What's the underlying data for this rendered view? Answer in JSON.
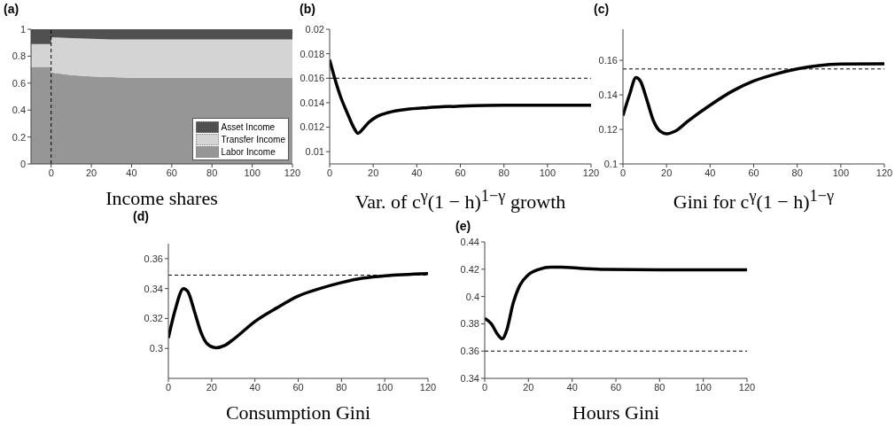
{
  "chart_data": [
    {
      "type": "area",
      "stacked": true,
      "title": "(a)",
      "xlabel": "Income shares",
      "x": [
        -10,
        0,
        0,
        10,
        20,
        30,
        40,
        60,
        80,
        100,
        120
      ],
      "xlim": [
        -10,
        120
      ],
      "xticks": [
        0,
        20,
        40,
        60,
        80,
        100,
        120
      ],
      "ylim": [
        0,
        1
      ],
      "yticks": [
        0,
        0.2,
        0.4,
        0.6,
        0.8,
        1
      ],
      "legend": "bottom right",
      "grid": false,
      "series": [
        {
          "name": "Labor Income",
          "color": "#969696",
          "values": [
            0.72,
            0.72,
            0.68,
            0.66,
            0.65,
            0.645,
            0.64,
            0.64,
            0.64,
            0.64,
            0.64
          ]
        },
        {
          "name": "Transfer Income",
          "color": "#d4d4d4",
          "values": [
            0.17,
            0.17,
            0.26,
            0.275,
            0.28,
            0.28,
            0.285,
            0.285,
            0.285,
            0.285,
            0.285
          ]
        },
        {
          "name": "Asset Income",
          "color": "#505050",
          "values": [
            0.11,
            0.11,
            0.06,
            0.065,
            0.07,
            0.075,
            0.075,
            0.075,
            0.075,
            0.075,
            0.075
          ]
        }
      ],
      "ref_lines": [
        {
          "axis": "x",
          "value": 0,
          "line_style": "dashed",
          "color": "#000000"
        }
      ]
    },
    {
      "type": "line",
      "title": "(b)",
      "xlabel": "Var. of c$^{γ}$(1 − h)$^{1−γ}$ growth",
      "x": [
        0,
        2,
        5,
        8,
        11,
        13,
        15,
        18,
        22,
        27,
        35,
        45,
        60,
        80,
        100,
        120
      ],
      "xlim": [
        0,
        120
      ],
      "xticks": [
        0,
        20,
        40,
        60,
        80,
        100,
        120
      ],
      "ylim": [
        0.009,
        0.02
      ],
      "yticks": [
        0.01,
        0.012,
        0.014,
        0.016,
        0.018,
        0.02
      ],
      "grid": false,
      "series": [
        {
          "color": "#000000",
          "values": [
            0.0175,
            0.0162,
            0.0145,
            0.0132,
            0.012,
            0.0115,
            0.0118,
            0.0124,
            0.0129,
            0.0132,
            0.01345,
            0.0136,
            0.01372,
            0.0138,
            0.0138,
            0.0138
          ]
        }
      ],
      "ref_lines": [
        {
          "axis": "y",
          "value": 0.016,
          "line_style": "dashed",
          "color": "#000000"
        }
      ]
    },
    {
      "type": "line",
      "title": "(c)",
      "xlabel": "Gini for c$^{γ}$(1 − h)$^{1−γ}$",
      "x": [
        0,
        3,
        6,
        8,
        11,
        14,
        17,
        20,
        24,
        30,
        40,
        50,
        60,
        70,
        80,
        90,
        100,
        120
      ],
      "xlim": [
        0,
        120
      ],
      "xticks": [
        0,
        20,
        40,
        60,
        80,
        100,
        120
      ],
      "ylim": [
        0.1,
        0.178
      ],
      "yticks": [
        0.1,
        0.12,
        0.14,
        0.16
      ],
      "grid": false,
      "series": [
        {
          "color": "#000000",
          "values": [
            0.128,
            0.14,
            0.15,
            0.148,
            0.137,
            0.125,
            0.119,
            0.1175,
            0.119,
            0.125,
            0.134,
            0.142,
            0.148,
            0.152,
            0.155,
            0.157,
            0.1578,
            0.158
          ]
        }
      ],
      "ref_lines": [
        {
          "axis": "y",
          "value": 0.155,
          "line_style": "dashed",
          "color": "#000000"
        }
      ]
    },
    {
      "type": "line",
      "title": "(d)",
      "xlabel": "Consumption Gini",
      "x": [
        0,
        3,
        7,
        9,
        12,
        15,
        18,
        22,
        26,
        30,
        40,
        50,
        60,
        70,
        80,
        90,
        100,
        120
      ],
      "xlim": [
        0,
        120
      ],
      "xticks": [
        0,
        20,
        40,
        60,
        80,
        100,
        120
      ],
      "ylim": [
        0.28,
        0.37
      ],
      "yticks": [
        0.3,
        0.32,
        0.34,
        0.36
      ],
      "grid": false,
      "series": [
        {
          "color": "#000000",
          "values": [
            0.307,
            0.325,
            0.34,
            0.338,
            0.325,
            0.311,
            0.303,
            0.3005,
            0.302,
            0.306,
            0.318,
            0.327,
            0.335,
            0.34,
            0.344,
            0.347,
            0.3485,
            0.35
          ]
        }
      ],
      "ref_lines": [
        {
          "axis": "y",
          "value": 0.349,
          "line_style": "dashed",
          "color": "#000000"
        }
      ]
    },
    {
      "type": "line",
      "title": "(e)",
      "xlabel": "Hours Gini",
      "x": [
        0,
        3,
        6,
        8,
        10,
        13,
        16,
        20,
        25,
        30,
        35,
        45,
        55,
        80,
        120
      ],
      "xlim": [
        0,
        120
      ],
      "xticks": [
        0,
        20,
        40,
        60,
        80,
        100,
        120
      ],
      "ylim": [
        0.34,
        0.44
      ],
      "yticks": [
        0.34,
        0.36,
        0.38,
        0.4,
        0.42,
        0.44
      ],
      "grid": false,
      "series": [
        {
          "color": "#000000",
          "values": [
            0.384,
            0.38,
            0.372,
            0.369,
            0.375,
            0.395,
            0.408,
            0.416,
            0.42,
            0.4215,
            0.4215,
            0.4205,
            0.4198,
            0.4195,
            0.4195
          ]
        }
      ],
      "ref_lines": [
        {
          "axis": "y",
          "value": 0.36,
          "line_style": "dashed",
          "color": "#000000"
        }
      ]
    }
  ]
}
